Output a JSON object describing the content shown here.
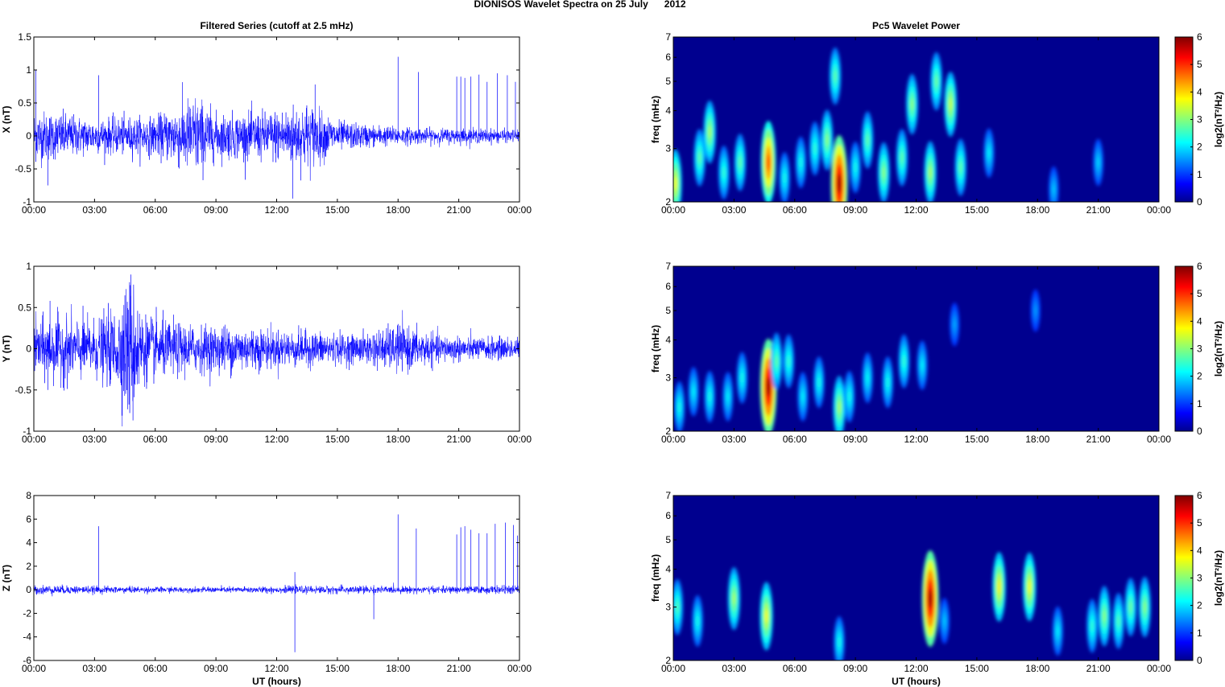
{
  "figure": {
    "title": "DIONISOS Wavelet Spectra on 25 July      2012"
  },
  "chart_data": [
    {
      "type": "line",
      "title": "Filtered Series (cutoff at 2.5 mHz)",
      "xlabel": "",
      "ylabel": "X (nT)",
      "xlim": [
        "00:00",
        "00:00"
      ],
      "xticks": [
        "00:00",
        "03:00",
        "06:00",
        "09:00",
        "12:00",
        "15:00",
        "18:00",
        "21:00",
        "00:00"
      ],
      "ylim": [
        -1,
        1.5
      ],
      "yticks": [
        "-1",
        "-0.5",
        "0",
        "0.5",
        "1",
        "1.5"
      ],
      "series": [
        {
          "color": "#0000ff",
          "envelope_hours": [
            0,
            1.5,
            3,
            4.5,
            6,
            7,
            8,
            9,
            10.5,
            12,
            13.5,
            15,
            16.5,
            18,
            19.5,
            21,
            24
          ],
          "envelope_amp_nT": [
            0.35,
            0.3,
            0.22,
            0.25,
            0.25,
            0.4,
            0.55,
            0.3,
            0.3,
            0.35,
            0.45,
            0.2,
            0.15,
            0.12,
            0.1,
            0.1,
            0.08
          ],
          "spikes": [
            {
              "t": 0.1,
              "v": 1.0
            },
            {
              "t": 0.7,
              "v": -0.75
            },
            {
              "t": 3.2,
              "v": 0.92
            },
            {
              "t": 13.9,
              "v": 0.78
            },
            {
              "t": 12.8,
              "v": -0.95
            },
            {
              "t": 18.0,
              "v": 1.2
            },
            {
              "t": 19.0,
              "v": 0.97
            },
            {
              "t": 20.9,
              "v": 0.9
            },
            {
              "t": 21.1,
              "v": 0.9
            },
            {
              "t": 21.3,
              "v": 0.88
            },
            {
              "t": 21.6,
              "v": 0.9
            },
            {
              "t": 22.0,
              "v": 0.93
            },
            {
              "t": 22.4,
              "v": 0.82
            },
            {
              "t": 22.9,
              "v": 0.95
            },
            {
              "t": 23.4,
              "v": 0.92
            },
            {
              "t": 23.8,
              "v": 0.82
            }
          ]
        }
      ]
    },
    {
      "type": "heatmap",
      "title": "Pc5 Wavelet Power",
      "ylabel": "freq (mHz)",
      "yscale": "log",
      "ylim": [
        2,
        7
      ],
      "yticks": [
        "2",
        "3",
        "4",
        "5",
        "6",
        "7"
      ],
      "xticks": [
        "00:00",
        "03:00",
        "06:00",
        "09:00",
        "12:00",
        "15:00",
        "18:00",
        "21:00",
        "00:00"
      ],
      "colorbar": {
        "label": "log2(nT²/Hz)",
        "range": [
          0,
          6
        ],
        "ticks": [
          "0",
          "1",
          "2",
          "3",
          "4",
          "5",
          "6"
        ],
        "colormap": "jet"
      },
      "blobs": [
        {
          "t": 0.1,
          "f": 2.3,
          "p": 3.5
        },
        {
          "t": 1.3,
          "f": 2.8,
          "p": 2.5
        },
        {
          "t": 1.8,
          "f": 3.4,
          "p": 3.0
        },
        {
          "t": 2.5,
          "f": 2.5,
          "p": 2.2
        },
        {
          "t": 3.3,
          "f": 2.7,
          "p": 2.5
        },
        {
          "t": 4.7,
          "f": 2.7,
          "p": 4.8
        },
        {
          "t": 5.5,
          "f": 2.4,
          "p": 2.0
        },
        {
          "t": 6.3,
          "f": 2.7,
          "p": 2.0
        },
        {
          "t": 7.0,
          "f": 3.0,
          "p": 2.2
        },
        {
          "t": 7.6,
          "f": 3.2,
          "p": 2.8
        },
        {
          "t": 8.2,
          "f": 2.3,
          "p": 6.0
        },
        {
          "t": 8.0,
          "f": 5.2,
          "p": 2.5
        },
        {
          "t": 9.0,
          "f": 2.6,
          "p": 2.0
        },
        {
          "t": 9.6,
          "f": 3.2,
          "p": 2.5
        },
        {
          "t": 10.4,
          "f": 2.5,
          "p": 2.8
        },
        {
          "t": 11.3,
          "f": 2.8,
          "p": 2.5
        },
        {
          "t": 11.8,
          "f": 4.2,
          "p": 2.8
        },
        {
          "t": 12.7,
          "f": 2.5,
          "p": 3.0
        },
        {
          "t": 13.0,
          "f": 5.0,
          "p": 2.6
        },
        {
          "t": 13.7,
          "f": 4.2,
          "p": 3.2
        },
        {
          "t": 14.2,
          "f": 2.6,
          "p": 2.5
        },
        {
          "t": 15.6,
          "f": 2.9,
          "p": 1.8
        },
        {
          "t": 18.8,
          "f": 2.2,
          "p": 1.5
        },
        {
          "t": 21.0,
          "f": 2.7,
          "p": 1.6
        }
      ]
    },
    {
      "type": "line",
      "title": "",
      "xlabel": "",
      "ylabel": "Y (nT)",
      "xticks": [
        "00:00",
        "03:00",
        "06:00",
        "09:00",
        "12:00",
        "15:00",
        "18:00",
        "21:00",
        "00:00"
      ],
      "ylim": [
        -1,
        1
      ],
      "yticks": [
        "-1",
        "-0.5",
        "0",
        "0.5",
        "1"
      ],
      "series": [
        {
          "color": "#0000ff",
          "envelope_hours": [
            0,
            1.5,
            3,
            4.2,
            4.7,
            5.5,
            6.5,
            8,
            10,
            12,
            14,
            16,
            18,
            20,
            22,
            24
          ],
          "envelope_amp_nT": [
            0.3,
            0.35,
            0.3,
            0.45,
            0.8,
            0.35,
            0.3,
            0.25,
            0.25,
            0.2,
            0.18,
            0.15,
            0.25,
            0.15,
            0.12,
            0.12
          ],
          "spikes": [
            {
              "t": 4.8,
              "v": 0.9
            },
            {
              "t": 4.9,
              "v": -0.87
            },
            {
              "t": 0.8,
              "v": 0.58
            },
            {
              "t": 0.7,
              "v": -0.5
            },
            {
              "t": 18.0,
              "v": 0.3
            }
          ]
        }
      ]
    },
    {
      "type": "heatmap",
      "ylabel": "freq (mHz)",
      "yscale": "log",
      "ylim": [
        2,
        7
      ],
      "yticks": [
        "2",
        "3",
        "4",
        "5",
        "6",
        "7"
      ],
      "xticks": [
        "00:00",
        "03:00",
        "06:00",
        "09:00",
        "12:00",
        "15:00",
        "18:00",
        "21:00",
        "00:00"
      ],
      "colorbar": {
        "label": "log2(nT²/Hz)",
        "range": [
          0,
          6
        ],
        "ticks": [
          "0",
          "1",
          "2",
          "3",
          "4",
          "5",
          "6"
        ],
        "colormap": "jet"
      },
      "blobs": [
        {
          "t": 0.3,
          "f": 2.4,
          "p": 2.0
        },
        {
          "t": 1.0,
          "f": 2.7,
          "p": 1.8
        },
        {
          "t": 1.8,
          "f": 2.6,
          "p": 2.0
        },
        {
          "t": 2.7,
          "f": 2.6,
          "p": 1.8
        },
        {
          "t": 3.4,
          "f": 3.0,
          "p": 2.0
        },
        {
          "t": 4.7,
          "f": 2.8,
          "p": 6.0
        },
        {
          "t": 5.1,
          "f": 3.4,
          "p": 2.5
        },
        {
          "t": 5.7,
          "f": 3.4,
          "p": 2.2
        },
        {
          "t": 6.4,
          "f": 2.6,
          "p": 1.8
        },
        {
          "t": 7.2,
          "f": 2.9,
          "p": 2.0
        },
        {
          "t": 8.2,
          "f": 2.4,
          "p": 3.0
        },
        {
          "t": 8.7,
          "f": 2.6,
          "p": 2.0
        },
        {
          "t": 9.6,
          "f": 3.0,
          "p": 1.9
        },
        {
          "t": 10.6,
          "f": 2.9,
          "p": 2.0
        },
        {
          "t": 11.4,
          "f": 3.4,
          "p": 2.2
        },
        {
          "t": 12.3,
          "f": 3.3,
          "p": 1.8
        },
        {
          "t": 13.9,
          "f": 4.5,
          "p": 1.3
        },
        {
          "t": 17.9,
          "f": 5.0,
          "p": 1.2
        }
      ]
    },
    {
      "type": "line",
      "title": "",
      "xlabel": "UT (hours)",
      "ylabel": "Z (nT)",
      "xticks": [
        "00:00",
        "03:00",
        "06:00",
        "09:00",
        "12:00",
        "15:00",
        "18:00",
        "21:00",
        "00:00"
      ],
      "ylim": [
        -6,
        8
      ],
      "yticks": [
        "-6",
        "-4",
        "-2",
        "0",
        "2",
        "4",
        "6",
        "8"
      ],
      "series": [
        {
          "color": "#0000ff",
          "envelope_hours": [
            0,
            4,
            8,
            12,
            16,
            18,
            20,
            24
          ],
          "envelope_amp_nT": [
            0.35,
            0.25,
            0.2,
            0.25,
            0.3,
            0.25,
            0.25,
            0.3
          ],
          "spikes": [
            {
              "t": 3.2,
              "v": 5.4
            },
            {
              "t": 12.9,
              "v": 1.5
            },
            {
              "t": 12.9,
              "v": -5.3
            },
            {
              "t": 16.8,
              "v": -2.5
            },
            {
              "t": 18.0,
              "v": 6.4
            },
            {
              "t": 18.9,
              "v": 5.2
            },
            {
              "t": 20.9,
              "v": 4.7
            },
            {
              "t": 21.1,
              "v": 5.3
            },
            {
              "t": 21.3,
              "v": 5.4
            },
            {
              "t": 21.6,
              "v": 5.1
            },
            {
              "t": 22.0,
              "v": 4.8
            },
            {
              "t": 22.4,
              "v": 4.8
            },
            {
              "t": 22.8,
              "v": 5.6
            },
            {
              "t": 23.3,
              "v": 5.7
            },
            {
              "t": 23.7,
              "v": 5.5
            },
            {
              "t": 23.9,
              "v": 4.6
            }
          ]
        }
      ]
    },
    {
      "type": "heatmap",
      "ylabel": "freq (mHz)",
      "yscale": "log",
      "ylim": [
        2,
        7
      ],
      "yticks": [
        "2",
        "3",
        "4",
        "5",
        "6",
        "7"
      ],
      "xlabel": "UT (hours)",
      "xticks": [
        "00:00",
        "03:00",
        "06:00",
        "09:00",
        "12:00",
        "15:00",
        "18:00",
        "21:00",
        "00:00"
      ],
      "colorbar": {
        "label": "log2(nT²/Hz)",
        "range": [
          0,
          6
        ],
        "ticks": [
          "0",
          "1",
          "2",
          "3",
          "4",
          "5",
          "6"
        ],
        "colormap": "jet"
      },
      "blobs": [
        {
          "t": 0.2,
          "f": 3.0,
          "p": 2.4
        },
        {
          "t": 1.2,
          "f": 2.7,
          "p": 2.0
        },
        {
          "t": 3.0,
          "f": 3.2,
          "p": 3.0
        },
        {
          "t": 4.6,
          "f": 2.8,
          "p": 3.5
        },
        {
          "t": 8.2,
          "f": 2.3,
          "p": 2.0
        },
        {
          "t": 12.7,
          "f": 3.2,
          "p": 6.0
        },
        {
          "t": 13.4,
          "f": 2.7,
          "p": 1.5
        },
        {
          "t": 16.1,
          "f": 3.5,
          "p": 3.6
        },
        {
          "t": 17.6,
          "f": 3.5,
          "p": 3.5
        },
        {
          "t": 19.0,
          "f": 2.5,
          "p": 1.8
        },
        {
          "t": 20.7,
          "f": 2.6,
          "p": 2.2
        },
        {
          "t": 21.3,
          "f": 2.8,
          "p": 2.8
        },
        {
          "t": 22.0,
          "f": 2.7,
          "p": 2.4
        },
        {
          "t": 22.6,
          "f": 3.0,
          "p": 2.6
        },
        {
          "t": 23.3,
          "f": 3.0,
          "p": 2.8
        }
      ]
    }
  ]
}
